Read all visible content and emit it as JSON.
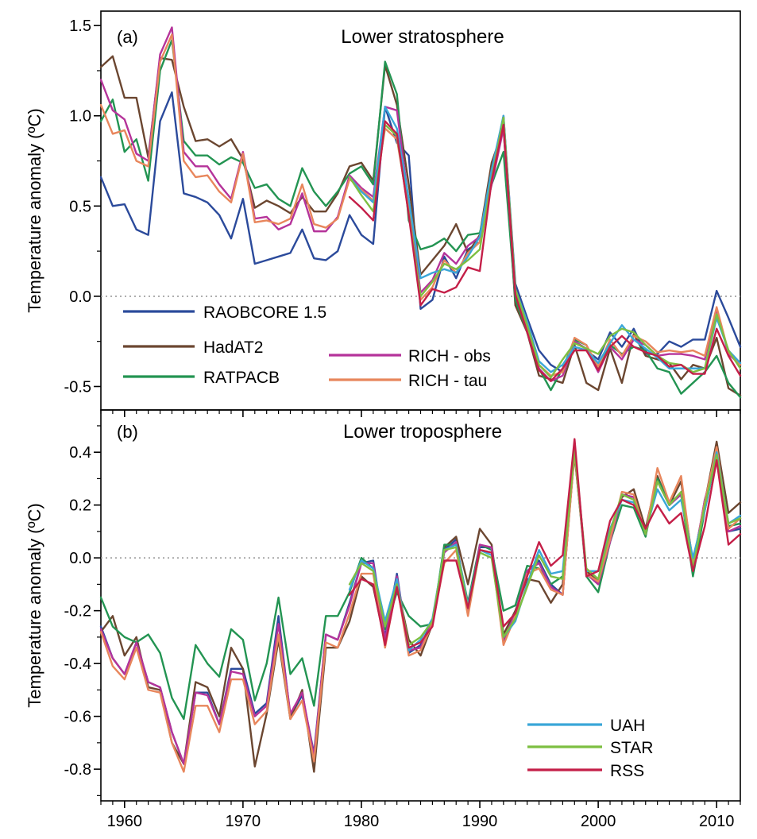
{
  "colors": {
    "raobcore": "#2b4a9b",
    "hadat2": "#6b4630",
    "ratpacb": "#239452",
    "rich_obs": "#b5339a",
    "rich_tau": "#e8865c",
    "uah": "#3aa6d8",
    "star": "#7dbf42",
    "rss": "#c41f48",
    "zero_line": "#999999"
  },
  "chart_data": [
    {
      "type": "line",
      "panel_label": "(a)",
      "title": "Lower stratosphere",
      "ylabel": "Temperature anomaly (ºC)",
      "xlim": [
        1958,
        2012
      ],
      "ylim": [
        -0.63,
        1.58
      ],
      "yticks": [
        -0.5,
        0.0,
        0.5,
        1.0,
        1.5
      ],
      "ytick_labels": [
        "-0.5",
        "0.0",
        "0.5",
        "1.0",
        "1.5"
      ],
      "zero_line": true,
      "series": [
        {
          "name": "RAOBCORE 1.5",
          "color_key": "raobcore",
          "x_start": 1958,
          "values": [
            0.66,
            0.5,
            0.51,
            0.37,
            0.34,
            0.97,
            1.13,
            0.57,
            0.55,
            0.52,
            0.45,
            0.32,
            0.54,
            0.18,
            0.2,
            0.22,
            0.24,
            0.37,
            0.21,
            0.2,
            0.25,
            0.45,
            0.34,
            0.29,
            1.05,
            0.85,
            0.78,
            -0.07,
            -0.02,
            0.22,
            0.1,
            0.26,
            0.3,
            0.68,
            1.0,
            0.07,
            -0.12,
            -0.3,
            -0.38,
            -0.42,
            -0.28,
            -0.3,
            -0.35,
            -0.2,
            -0.28,
            -0.18,
            -0.32,
            -0.32,
            -0.25,
            -0.28,
            -0.24,
            -0.24,
            0.03,
            -0.12,
            -0.28
          ]
        },
        {
          "name": "HadAT2",
          "color_key": "hadat2",
          "x_start": 1958,
          "values": [
            1.27,
            1.33,
            1.1,
            1.1,
            0.77,
            1.32,
            1.31,
            1.05,
            0.86,
            0.87,
            0.83,
            0.87,
            0.76,
            0.49,
            0.53,
            0.5,
            0.46,
            0.55,
            0.47,
            0.47,
            0.57,
            0.72,
            0.74,
            0.64,
            1.28,
            1.06,
            0.62,
            0.12,
            0.2,
            0.28,
            0.4,
            0.24,
            0.34,
            0.74,
            0.93,
            -0.05,
            -0.2,
            -0.44,
            -0.46,
            -0.48,
            -0.27,
            -0.48,
            -0.52,
            -0.29,
            -0.48,
            -0.21,
            -0.33,
            -0.35,
            -0.37,
            -0.46,
            -0.38,
            -0.4,
            -0.23,
            -0.51,
            -0.55
          ]
        },
        {
          "name": "RATPACB",
          "color_key": "ratpacb",
          "x_start": 1958,
          "values": [
            0.97,
            1.09,
            0.8,
            0.87,
            0.64,
            1.25,
            1.42,
            0.86,
            0.78,
            0.78,
            0.73,
            0.77,
            0.74,
            0.6,
            0.62,
            0.54,
            0.5,
            0.71,
            0.58,
            0.5,
            0.58,
            0.68,
            0.72,
            0.62,
            1.3,
            1.12,
            0.42,
            0.26,
            0.28,
            0.32,
            0.25,
            0.34,
            0.35,
            0.62,
            0.8,
            -0.02,
            -0.2,
            -0.4,
            -0.52,
            -0.4,
            -0.24,
            -0.27,
            -0.4,
            -0.27,
            -0.32,
            -0.28,
            -0.3,
            -0.4,
            -0.42,
            -0.54,
            -0.48,
            -0.42,
            -0.33,
            -0.48,
            -0.56
          ]
        },
        {
          "name": "RICH - obs",
          "color_key": "rich_obs",
          "x_start": 1958,
          "values": [
            1.2,
            1.03,
            0.98,
            0.79,
            0.75,
            1.34,
            1.49,
            0.8,
            0.72,
            0.72,
            0.62,
            0.54,
            0.8,
            0.43,
            0.44,
            0.37,
            0.4,
            0.57,
            0.36,
            0.36,
            0.44,
            0.67,
            0.6,
            0.55,
            1.05,
            1.03,
            0.52,
            0.02,
            0.09,
            0.24,
            0.18,
            0.28,
            0.33,
            0.62,
            0.93,
            0.01,
            -0.17,
            -0.4,
            -0.47,
            -0.44,
            -0.25,
            -0.29,
            -0.42,
            -0.28,
            -0.35,
            -0.24,
            -0.27,
            -0.33,
            -0.32,
            -0.32,
            -0.33,
            -0.35,
            -0.07,
            -0.32,
            -0.38
          ]
        },
        {
          "name": "RICH - tau",
          "color_key": "rich_tau",
          "x_start": 1958,
          "values": [
            1.06,
            0.9,
            0.92,
            0.75,
            0.72,
            1.3,
            1.45,
            0.75,
            0.66,
            0.67,
            0.58,
            0.52,
            0.79,
            0.41,
            0.42,
            0.4,
            0.43,
            0.62,
            0.4,
            0.38,
            0.43,
            0.65,
            0.59,
            0.53,
            0.93,
            0.87,
            0.48,
            -0.02,
            0.05,
            0.2,
            0.13,
            0.24,
            0.3,
            0.68,
            0.95,
            0.02,
            -0.16,
            -0.38,
            -0.44,
            -0.42,
            -0.23,
            -0.27,
            -0.39,
            -0.24,
            -0.33,
            -0.22,
            -0.25,
            -0.31,
            -0.3,
            -0.31,
            -0.3,
            -0.33,
            -0.06,
            -0.31,
            -0.38
          ]
        },
        {
          "name": "UAH",
          "color_key": "uah",
          "x_start": 1979,
          "values": [
            0.66,
            0.58,
            0.52,
            1.05,
            0.93,
            0.54,
            0.1,
            0.13,
            0.15,
            0.13,
            0.22,
            0.33,
            0.7,
            1.0,
            0.04,
            -0.14,
            -0.36,
            -0.42,
            -0.38,
            -0.28,
            -0.3,
            -0.37,
            -0.26,
            -0.16,
            -0.24,
            -0.29,
            -0.34,
            -0.4,
            -0.4,
            -0.4,
            -0.4,
            -0.12,
            -0.3,
            -0.37
          ]
        },
        {
          "name": "STAR",
          "color_key": "star",
          "x_start": 1979,
          "values": [
            0.66,
            0.56,
            0.47,
            0.95,
            0.89,
            0.46,
            0.0,
            0.08,
            0.18,
            0.15,
            0.2,
            0.26,
            0.65,
            0.99,
            0.04,
            -0.16,
            -0.38,
            -0.45,
            -0.35,
            -0.26,
            -0.29,
            -0.32,
            -0.22,
            -0.18,
            -0.2,
            -0.27,
            -0.33,
            -0.37,
            -0.38,
            -0.42,
            -0.4,
            -0.1,
            -0.3,
            -0.4
          ]
        },
        {
          "name": "RSS",
          "color_key": "rss",
          "x_start": 1979,
          "values": [
            0.55,
            0.49,
            0.42,
            0.97,
            0.9,
            0.45,
            -0.05,
            0.04,
            0.02,
            0.05,
            0.16,
            0.14,
            0.64,
            0.95,
            0.01,
            -0.2,
            -0.41,
            -0.47,
            -0.4,
            -0.3,
            -0.3,
            -0.41,
            -0.28,
            -0.22,
            -0.28,
            -0.31,
            -0.33,
            -0.39,
            -0.38,
            -0.43,
            -0.43,
            -0.18,
            -0.33,
            -0.44
          ]
        }
      ],
      "legend": {
        "left": [
          {
            "label": "RAOBCORE 1.5",
            "color_key": "raobcore"
          },
          {
            "label": "HadAT2",
            "color_key": "hadat2"
          },
          {
            "label": "RATPACB",
            "color_key": "ratpacb"
          }
        ],
        "right": [
          {
            "label": "RICH - obs",
            "color_key": "rich_obs"
          },
          {
            "label": "RICH - tau",
            "color_key": "rich_tau"
          }
        ]
      }
    },
    {
      "type": "line",
      "panel_label": "(b)",
      "title": "Lower troposphere",
      "ylabel": "Temperature anomaly (ºC)",
      "xlim": [
        1958,
        2012
      ],
      "ylim": [
        -0.92,
        0.56
      ],
      "yticks": [
        -0.8,
        -0.6,
        -0.4,
        -0.2,
        0.0,
        0.2,
        0.4
      ],
      "ytick_labels": [
        "-0.8",
        "-0.6",
        "-0.4",
        "-0.2",
        "0.0",
        "0.2",
        "0.4"
      ],
      "xticks": [
        1960,
        1970,
        1980,
        1990,
        2000,
        2010
      ],
      "xtick_labels": [
        "1960",
        "1970",
        "1980",
        "1990",
        "2000",
        "2010"
      ],
      "zero_line": true,
      "series": [
        {
          "name": "RAOBCORE 1.5",
          "color_key": "raobcore",
          "x_start": 1958,
          "values": [
            -0.26,
            -0.38,
            -0.44,
            -0.32,
            -0.47,
            -0.49,
            -0.66,
            -0.78,
            -0.51,
            -0.51,
            -0.63,
            -0.42,
            -0.42,
            -0.59,
            -0.55,
            -0.22,
            -0.6,
            -0.52,
            -0.74,
            -0.29,
            -0.31,
            -0.17,
            -0.02,
            -0.01,
            -0.3,
            -0.06,
            -0.36,
            -0.33,
            -0.24,
            0.03,
            0.07,
            -0.21,
            0.04,
            0.04,
            -0.32,
            -0.21,
            -0.05,
            -0.01,
            -0.1,
            -0.14,
            0.41,
            -0.06,
            -0.1,
            0.06,
            0.24,
            0.23,
            0.09,
            0.3,
            0.2,
            0.24,
            -0.04,
            0.22,
            0.38,
            0.1,
            0.11
          ]
        },
        {
          "name": "HadAT2",
          "color_key": "hadat2",
          "x_start": 1958,
          "values": [
            -0.28,
            -0.22,
            -0.37,
            -0.3,
            -0.49,
            -0.5,
            -0.7,
            -0.78,
            -0.47,
            -0.49,
            -0.6,
            -0.34,
            -0.42,
            -0.79,
            -0.59,
            -0.31,
            -0.61,
            -0.5,
            -0.81,
            -0.34,
            -0.34,
            -0.24,
            -0.07,
            -0.11,
            -0.32,
            -0.1,
            -0.31,
            -0.37,
            -0.25,
            0.04,
            0.08,
            -0.1,
            0.11,
            0.05,
            -0.29,
            -0.2,
            -0.08,
            -0.09,
            -0.17,
            -0.1,
            0.39,
            -0.05,
            -0.09,
            0.08,
            0.23,
            0.26,
            0.11,
            0.31,
            0.2,
            0.29,
            -0.02,
            0.21,
            0.44,
            0.17,
            0.21
          ]
        },
        {
          "name": "RATPACB",
          "color_key": "ratpacb",
          "x_start": 1958,
          "values": [
            -0.15,
            -0.26,
            -0.3,
            -0.32,
            -0.29,
            -0.36,
            -0.53,
            -0.61,
            -0.33,
            -0.4,
            -0.45,
            -0.27,
            -0.31,
            -0.54,
            -0.4,
            -0.15,
            -0.44,
            -0.38,
            -0.56,
            -0.22,
            -0.22,
            -0.13,
            0.0,
            -0.04,
            -0.27,
            -0.13,
            -0.22,
            -0.26,
            -0.25,
            0.05,
            0.05,
            -0.17,
            0.05,
            0.03,
            -0.2,
            -0.18,
            -0.03,
            -0.04,
            -0.1,
            -0.07,
            0.4,
            -0.07,
            -0.13,
            0.06,
            0.2,
            0.19,
            0.08,
            0.3,
            0.21,
            0.24,
            -0.07,
            0.18,
            0.39,
            0.12,
            0.13
          ]
        },
        {
          "name": "RICH - obs",
          "color_key": "rich_obs",
          "x_start": 1958,
          "values": [
            -0.27,
            -0.38,
            -0.44,
            -0.32,
            -0.47,
            -0.49,
            -0.66,
            -0.78,
            -0.51,
            -0.52,
            -0.63,
            -0.43,
            -0.44,
            -0.6,
            -0.56,
            -0.25,
            -0.59,
            -0.51,
            -0.75,
            -0.29,
            -0.31,
            -0.18,
            -0.02,
            -0.02,
            -0.31,
            -0.07,
            -0.35,
            -0.34,
            -0.24,
            0.02,
            0.06,
            -0.21,
            0.05,
            0.04,
            -0.31,
            -0.21,
            -0.05,
            -0.02,
            -0.11,
            -0.14,
            0.41,
            -0.06,
            -0.1,
            0.06,
            0.24,
            0.23,
            0.09,
            0.29,
            0.2,
            0.24,
            -0.03,
            0.22,
            0.38,
            0.1,
            0.12
          ]
        },
        {
          "name": "RICH - tau",
          "color_key": "rich_tau",
          "x_start": 1958,
          "values": [
            -0.28,
            -0.41,
            -0.46,
            -0.34,
            -0.5,
            -0.51,
            -0.7,
            -0.81,
            -0.56,
            -0.56,
            -0.66,
            -0.46,
            -0.46,
            -0.63,
            -0.58,
            -0.29,
            -0.61,
            -0.54,
            -0.77,
            -0.32,
            -0.34,
            -0.21,
            -0.06,
            -0.06,
            -0.34,
            -0.1,
            -0.37,
            -0.35,
            -0.25,
            -0.02,
            0.03,
            -0.22,
            0.03,
            0.02,
            -0.33,
            -0.22,
            -0.06,
            -0.04,
            -0.12,
            -0.14,
            0.4,
            -0.06,
            -0.09,
            0.07,
            0.25,
            0.24,
            0.09,
            0.34,
            0.21,
            0.31,
            -0.03,
            0.21,
            0.42,
            0.11,
            0.15
          ]
        },
        {
          "name": "UAH",
          "color_key": "uah",
          "x_start": 1979,
          "values": [
            -0.12,
            -0.01,
            -0.04,
            -0.24,
            -0.08,
            -0.35,
            -0.31,
            -0.23,
            0.03,
            0.05,
            -0.18,
            0.03,
            0.01,
            -0.3,
            -0.24,
            -0.1,
            0.03,
            -0.06,
            -0.05,
            0.42,
            -0.05,
            -0.05,
            0.11,
            0.22,
            0.21,
            0.1,
            0.26,
            0.18,
            0.22,
            0.0,
            0.18,
            0.4,
            0.13,
            0.16
          ]
        },
        {
          "name": "STAR",
          "color_key": "star",
          "x_start": 1979,
          "values": [
            -0.1,
            -0.02,
            -0.05,
            -0.26,
            -0.1,
            -0.33,
            -0.3,
            -0.24,
            0.03,
            0.04,
            -0.19,
            0.02,
            0.0,
            -0.3,
            -0.23,
            -0.11,
            0.01,
            -0.07,
            -0.08,
            0.41,
            -0.04,
            -0.08,
            0.1,
            0.24,
            0.22,
            0.09,
            0.29,
            0.2,
            0.25,
            -0.04,
            0.2,
            0.39,
            0.13,
            0.15
          ]
        },
        {
          "name": "RSS",
          "color_key": "rss",
          "x_start": 1979,
          "values": [
            -0.14,
            -0.08,
            -0.1,
            -0.33,
            -0.11,
            -0.34,
            -0.32,
            -0.26,
            -0.01,
            -0.01,
            -0.19,
            0.03,
            0.02,
            -0.26,
            -0.21,
            -0.07,
            0.06,
            -0.03,
            0.01,
            0.45,
            -0.07,
            -0.05,
            0.14,
            0.22,
            0.2,
            0.11,
            0.2,
            0.13,
            0.17,
            -0.05,
            0.12,
            0.37,
            0.05,
            0.09
          ]
        }
      ],
      "legend": {
        "right": [
          {
            "label": "UAH",
            "color_key": "uah"
          },
          {
            "label": "STAR",
            "color_key": "star"
          },
          {
            "label": "RSS",
            "color_key": "rss"
          }
        ]
      }
    }
  ]
}
